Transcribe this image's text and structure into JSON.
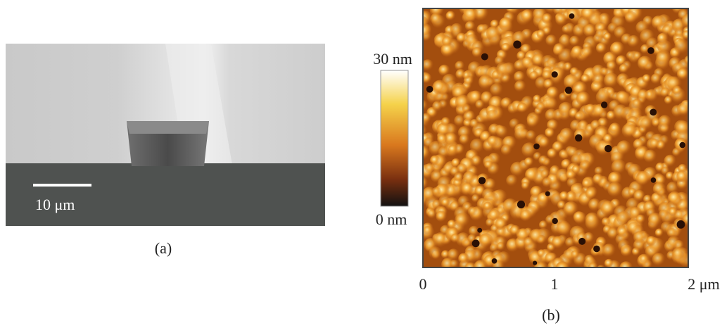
{
  "panel_a": {
    "scale_bar_label": "10 μm",
    "caption": "(a)"
  },
  "panel_b": {
    "colorbar_max_label": "30 nm",
    "colorbar_min_label": "0 nm",
    "x_tick_labels": [
      "0",
      "1",
      "2 μm"
    ],
    "caption": "(b)"
  }
}
